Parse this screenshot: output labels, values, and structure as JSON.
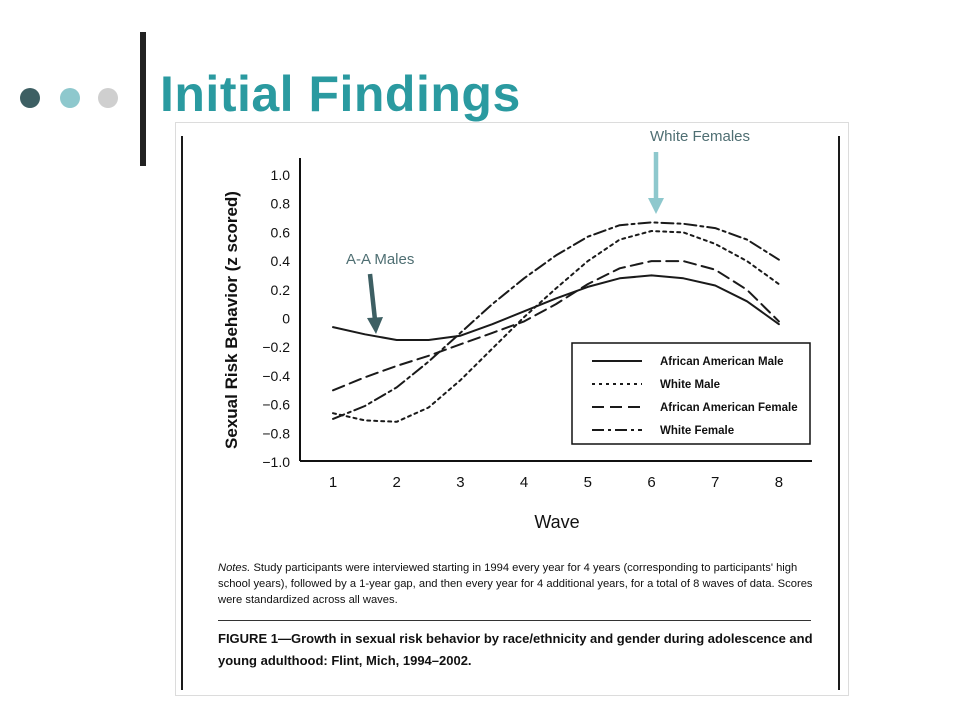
{
  "slide": {
    "title": "Initial Findings",
    "bullet_colors": [
      "#3d5f63",
      "#8ec8cd",
      "#cfcfcf"
    ],
    "accent": "#2a9aa0"
  },
  "callouts": [
    {
      "label": "White Females",
      "arrow_color": "#8ec8cd",
      "points_to": "White Female"
    },
    {
      "label": "A-A Males",
      "arrow_color": "#3d5f63",
      "points_to": "African American Male"
    }
  ],
  "chart_data": {
    "type": "line",
    "title": "",
    "xlabel": "Wave",
    "ylabel": "Sexual Risk Behavior (z scored)",
    "x": [
      1,
      1.5,
      2,
      2.5,
      3,
      3.5,
      4,
      4.5,
      5,
      5.5,
      6,
      6.5,
      7,
      7.5,
      8
    ],
    "xticks": [
      "1",
      "2",
      "3",
      "4",
      "5",
      "6",
      "7",
      "8"
    ],
    "yticks": [
      "1.0",
      "0.8",
      "0.6",
      "0.4",
      "0.2",
      "0",
      "−0.2",
      "−0.4",
      "−0.6",
      "−0.8",
      "−1.0"
    ],
    "ylim": [
      -1.0,
      1.0
    ],
    "xlim": [
      0.8,
      8.5
    ],
    "grid": false,
    "legend_position": "lower-right",
    "series": [
      {
        "name": "African American Male",
        "dash": "solid",
        "values": [
          -0.06,
          -0.11,
          -0.15,
          -0.15,
          -0.12,
          -0.04,
          0.05,
          0.14,
          0.22,
          0.28,
          0.3,
          0.28,
          0.23,
          0.12,
          -0.04
        ]
      },
      {
        "name": "White Male",
        "dash": "dotted",
        "values": [
          -0.66,
          -0.71,
          -0.72,
          -0.62,
          -0.43,
          -0.21,
          0.01,
          0.21,
          0.4,
          0.55,
          0.61,
          0.6,
          0.52,
          0.4,
          0.24
        ]
      },
      {
        "name": "African American Female",
        "dash": "dashed",
        "values": [
          -0.5,
          -0.41,
          -0.33,
          -0.26,
          -0.18,
          -0.1,
          -0.02,
          0.1,
          0.24,
          0.35,
          0.4,
          0.4,
          0.34,
          0.2,
          -0.02
        ]
      },
      {
        "name": "White Female",
        "dash": "dashdot",
        "values": [
          -0.7,
          -0.61,
          -0.48,
          -0.3,
          -0.1,
          0.1,
          0.28,
          0.44,
          0.57,
          0.65,
          0.67,
          0.66,
          0.63,
          0.55,
          0.41
        ]
      }
    ]
  },
  "figure": {
    "notes_label": "Notes.",
    "notes_text": " Study participants were interviewed starting in 1994 every year for 4 years (corresponding to participants' high school years), followed by a 1-year gap, and then every year for 4 additional years, for a total of 8 waves of data. Scores were standardized across all waves.",
    "caption": "FIGURE 1—Growth in sexual risk behavior by race/ethnicity and gender during adolescence and young adulthood: Flint, Mich, 1994–2002."
  }
}
